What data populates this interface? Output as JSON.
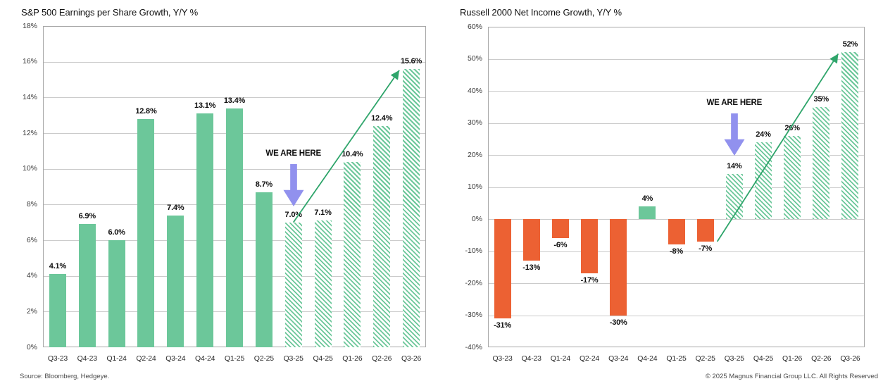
{
  "footer": {
    "source": "Source: Bloomberg, Hedgeye.",
    "copyright": "© 2025 Magnus Financial Group LLC. All Rights Reserved"
  },
  "colors": {
    "bar_green": "#6cc79a",
    "bar_orange": "#ec6133",
    "trend_arrow_green": "#2fa56b",
    "here_arrow_purple": "#9191ee",
    "gridline": "#cbcbcb",
    "plot_border": "#a8a8a8"
  },
  "chart_data": [
    {
      "type": "bar",
      "title": "S&P 500 Earnings per Share Growth, Y/Y %",
      "xlabel": "",
      "ylabel": "",
      "grid": true,
      "categories": [
        "Q3-23",
        "Q4-23",
        "Q1-24",
        "Q2-24",
        "Q3-24",
        "Q4-24",
        "Q1-25",
        "Q2-25",
        "Q3-25",
        "Q4-25",
        "Q1-26",
        "Q2-26",
        "Q3-26"
      ],
      "values": [
        4.1,
        6.9,
        6.0,
        12.8,
        7.4,
        13.1,
        13.4,
        8.7,
        7.0,
        7.1,
        10.4,
        12.4,
        15.6
      ],
      "labels": [
        "4.1%",
        "6.9%",
        "6.0%",
        "12.8%",
        "7.4%",
        "13.1%",
        "13.4%",
        "8.7%",
        "7.0%",
        "7.1%",
        "10.4%",
        "12.4%",
        "15.6%"
      ],
      "styles": [
        "green",
        "green",
        "green",
        "green",
        "green",
        "green",
        "green",
        "green",
        "green_hatch",
        "green_hatch",
        "green_hatch",
        "green_hatch",
        "green_hatch"
      ],
      "ylim": [
        0,
        18
      ],
      "yticks": [
        "18%",
        "16%",
        "14%",
        "12%",
        "10%",
        "8%",
        "6%",
        "4%",
        "2%",
        "0%"
      ],
      "annotation": {
        "text": "WE ARE HERE",
        "bar_index": 8
      },
      "trend_arrow": {
        "from": {
          "bar": 8,
          "anchor": "top"
        },
        "to": {
          "bar": 12,
          "anchor": "top-left"
        }
      }
    },
    {
      "type": "bar",
      "title": "Russell 2000 Net Income Growth, Y/Y %",
      "xlabel": "",
      "ylabel": "",
      "grid": true,
      "categories": [
        "Q3-23",
        "Q4-23",
        "Q1-24",
        "Q2-24",
        "Q3-24",
        "Q4-24",
        "Q1-25",
        "Q2-25",
        "Q3-25",
        "Q4-25",
        "Q1-26",
        "Q2-26",
        "Q3-26"
      ],
      "values": [
        -31,
        -13,
        -6,
        -17,
        -30,
        4,
        -8,
        -7,
        14,
        24,
        26,
        35,
        52
      ],
      "labels": [
        "-31%",
        "-13%",
        "-6%",
        "-17%",
        "-30%",
        "4%",
        "-8%",
        "-7%",
        "14%",
        "24%",
        "26%",
        "35%",
        "52%"
      ],
      "styles": [
        "orange",
        "orange",
        "orange",
        "orange",
        "orange",
        "green",
        "orange",
        "orange",
        "green_hatch",
        "green_hatch",
        "green_hatch",
        "green_hatch",
        "green_hatch"
      ],
      "ylim": [
        -40,
        60
      ],
      "yticks": [
        "60%",
        "50%",
        "40%",
        "30%",
        "20%",
        "10%",
        "0%",
        "-10%",
        "-20%",
        "-30%",
        "-40%"
      ],
      "annotation": {
        "text": "WE ARE HERE",
        "bar_index": 8
      },
      "trend_arrow": {
        "from": {
          "bar": 7,
          "anchor": "bottom-right"
        },
        "to": {
          "bar": 12,
          "anchor": "top-left"
        }
      }
    }
  ]
}
